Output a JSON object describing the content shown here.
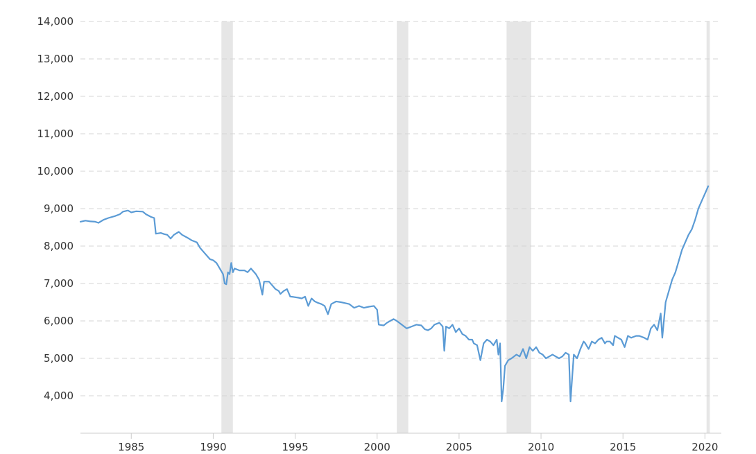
{
  "chart_data": {
    "type": "line",
    "title": "",
    "xlabel": "",
    "ylabel": "",
    "xlim": [
      1981.9,
      2021.0
    ],
    "ylim": [
      3000,
      14000
    ],
    "grid": true,
    "y_ticks": [
      4000,
      5000,
      6000,
      7000,
      8000,
      9000,
      10000,
      11000,
      12000,
      13000,
      14000
    ],
    "y_tick_labels": [
      "4,000",
      "5,000",
      "6,000",
      "7,000",
      "8,000",
      "9,000",
      "10,000",
      "11,000",
      "12,000",
      "13,000",
      "14,000"
    ],
    "x_ticks": [
      1985,
      1990,
      1995,
      2000,
      2005,
      2010,
      2015,
      2020
    ],
    "x_tick_labels": [
      "1985",
      "1990",
      "1995",
      "2000",
      "2005",
      "2010",
      "2015",
      "2020"
    ],
    "shaded_periods": [
      [
        1990.5,
        1991.2
      ],
      [
        2001.2,
        2001.9
      ],
      [
        2007.9,
        2009.4
      ],
      [
        2020.1,
        2020.3
      ]
    ],
    "line_color": "#5b9bd5",
    "band_color": "#e6e6e6",
    "series": [
      {
        "values": [
          [
            1981.9,
            8650
          ],
          [
            1982.2,
            8680
          ],
          [
            1982.5,
            8660
          ],
          [
            1982.8,
            8650
          ],
          [
            1983.0,
            8620
          ],
          [
            1983.3,
            8700
          ],
          [
            1983.6,
            8750
          ],
          [
            1984.0,
            8800
          ],
          [
            1984.3,
            8850
          ],
          [
            1984.5,
            8920
          ],
          [
            1984.8,
            8950
          ],
          [
            1985.0,
            8900
          ],
          [
            1985.3,
            8930
          ],
          [
            1985.7,
            8920
          ],
          [
            1985.9,
            8850
          ],
          [
            1986.2,
            8780
          ],
          [
            1986.4,
            8750
          ],
          [
            1986.5,
            8330
          ],
          [
            1986.8,
            8350
          ],
          [
            1987.0,
            8320
          ],
          [
            1987.2,
            8300
          ],
          [
            1987.4,
            8200
          ],
          [
            1987.6,
            8300
          ],
          [
            1987.9,
            8380
          ],
          [
            1988.1,
            8300
          ],
          [
            1988.4,
            8230
          ],
          [
            1988.7,
            8150
          ],
          [
            1989.0,
            8100
          ],
          [
            1989.2,
            7950
          ],
          [
            1989.5,
            7800
          ],
          [
            1989.8,
            7650
          ],
          [
            1990.0,
            7620
          ],
          [
            1990.2,
            7550
          ],
          [
            1990.4,
            7400
          ],
          [
            1990.6,
            7250
          ],
          [
            1990.7,
            7000
          ],
          [
            1990.8,
            6980
          ],
          [
            1990.9,
            7300
          ],
          [
            1991.0,
            7250
          ],
          [
            1991.1,
            7550
          ],
          [
            1991.2,
            7300
          ],
          [
            1991.3,
            7400
          ],
          [
            1991.6,
            7350
          ],
          [
            1991.9,
            7350
          ],
          [
            1992.1,
            7300
          ],
          [
            1992.3,
            7400
          ],
          [
            1992.6,
            7250
          ],
          [
            1992.8,
            7100
          ],
          [
            1993.0,
            6700
          ],
          [
            1993.1,
            7050
          ],
          [
            1993.4,
            7050
          ],
          [
            1993.6,
            6950
          ],
          [
            1993.8,
            6850
          ],
          [
            1994.0,
            6800
          ],
          [
            1994.1,
            6720
          ],
          [
            1994.3,
            6800
          ],
          [
            1994.5,
            6850
          ],
          [
            1994.7,
            6650
          ],
          [
            1994.9,
            6640
          ],
          [
            1995.2,
            6620
          ],
          [
            1995.4,
            6600
          ],
          [
            1995.6,
            6650
          ],
          [
            1995.8,
            6400
          ],
          [
            1996.0,
            6600
          ],
          [
            1996.2,
            6520
          ],
          [
            1996.4,
            6480
          ],
          [
            1996.6,
            6450
          ],
          [
            1996.8,
            6400
          ],
          [
            1997.0,
            6180
          ],
          [
            1997.2,
            6450
          ],
          [
            1997.5,
            6520
          ],
          [
            1997.8,
            6500
          ],
          [
            1998.0,
            6480
          ],
          [
            1998.3,
            6450
          ],
          [
            1998.6,
            6350
          ],
          [
            1998.9,
            6400
          ],
          [
            1999.2,
            6350
          ],
          [
            1999.5,
            6380
          ],
          [
            1999.8,
            6400
          ],
          [
            2000.0,
            6300
          ],
          [
            2000.1,
            5900
          ],
          [
            2000.4,
            5880
          ],
          [
            2000.6,
            5950
          ],
          [
            2000.8,
            6000
          ],
          [
            2001.0,
            6050
          ],
          [
            2001.2,
            6000
          ],
          [
            2001.5,
            5900
          ],
          [
            2001.8,
            5800
          ],
          [
            2002.1,
            5850
          ],
          [
            2002.4,
            5900
          ],
          [
            2002.7,
            5880
          ],
          [
            2002.9,
            5780
          ],
          [
            2003.1,
            5750
          ],
          [
            2003.3,
            5800
          ],
          [
            2003.5,
            5900
          ],
          [
            2003.8,
            5950
          ],
          [
            2004.0,
            5850
          ],
          [
            2004.1,
            5200
          ],
          [
            2004.2,
            5850
          ],
          [
            2004.4,
            5800
          ],
          [
            2004.6,
            5900
          ],
          [
            2004.8,
            5700
          ],
          [
            2005.0,
            5800
          ],
          [
            2005.2,
            5650
          ],
          [
            2005.4,
            5600
          ],
          [
            2005.6,
            5500
          ],
          [
            2005.8,
            5500
          ],
          [
            2005.9,
            5400
          ],
          [
            2006.1,
            5350
          ],
          [
            2006.3,
            4950
          ],
          [
            2006.5,
            5400
          ],
          [
            2006.7,
            5500
          ],
          [
            2006.9,
            5450
          ],
          [
            2007.1,
            5350
          ],
          [
            2007.3,
            5500
          ],
          [
            2007.4,
            5100
          ],
          [
            2007.5,
            5400
          ],
          [
            2007.6,
            3850
          ],
          [
            2007.7,
            4200
          ],
          [
            2007.8,
            4800
          ],
          [
            2008.0,
            4950
          ],
          [
            2008.2,
            5000
          ],
          [
            2008.5,
            5100
          ],
          [
            2008.7,
            5050
          ],
          [
            2008.9,
            5250
          ],
          [
            2009.1,
            5000
          ],
          [
            2009.3,
            5300
          ],
          [
            2009.5,
            5200
          ],
          [
            2009.7,
            5300
          ],
          [
            2009.9,
            5150
          ],
          [
            2010.1,
            5100
          ],
          [
            2010.3,
            5000
          ],
          [
            2010.5,
            5050
          ],
          [
            2010.7,
            5100
          ],
          [
            2010.9,
            5050
          ],
          [
            2011.1,
            5000
          ],
          [
            2011.3,
            5050
          ],
          [
            2011.5,
            5150
          ],
          [
            2011.7,
            5100
          ],
          [
            2011.8,
            3850
          ],
          [
            2011.9,
            4500
          ],
          [
            2012.0,
            5100
          ],
          [
            2012.2,
            5000
          ],
          [
            2012.4,
            5250
          ],
          [
            2012.6,
            5450
          ],
          [
            2012.7,
            5400
          ],
          [
            2012.9,
            5250
          ],
          [
            2013.1,
            5450
          ],
          [
            2013.3,
            5400
          ],
          [
            2013.5,
            5500
          ],
          [
            2013.7,
            5550
          ],
          [
            2013.9,
            5400
          ],
          [
            2014.0,
            5450
          ],
          [
            2014.2,
            5450
          ],
          [
            2014.4,
            5350
          ],
          [
            2014.5,
            5600
          ],
          [
            2014.7,
            5550
          ],
          [
            2014.9,
            5500
          ],
          [
            2015.1,
            5300
          ],
          [
            2015.3,
            5600
          ],
          [
            2015.5,
            5550
          ],
          [
            2015.8,
            5600
          ],
          [
            2016.0,
            5600
          ],
          [
            2016.3,
            5550
          ],
          [
            2016.5,
            5500
          ],
          [
            2016.7,
            5800
          ],
          [
            2016.9,
            5900
          ],
          [
            2017.1,
            5750
          ],
          [
            2017.3,
            6200
          ],
          [
            2017.4,
            5550
          ],
          [
            2017.6,
            6500
          ],
          [
            2017.8,
            6800
          ],
          [
            2018.0,
            7100
          ],
          [
            2018.2,
            7300
          ],
          [
            2018.4,
            7600
          ],
          [
            2018.6,
            7900
          ],
          [
            2018.8,
            8100
          ],
          [
            2019.0,
            8300
          ],
          [
            2019.2,
            8450
          ],
          [
            2019.4,
            8700
          ],
          [
            2019.6,
            9000
          ],
          [
            2019.8,
            9200
          ],
          [
            2020.0,
            9400
          ],
          [
            2020.2,
            9600
          ]
        ]
      }
    ]
  }
}
